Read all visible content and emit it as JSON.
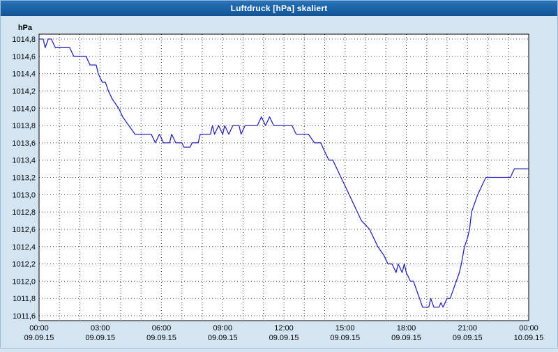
{
  "window": {
    "title": "Luftdruck [hPa] skaliert"
  },
  "colors": {
    "titlebar_bg": "#155a9e",
    "titlebar_text": "#ffffff",
    "frame_bg": "#d3e5f3",
    "plot_bg": "#ffffff",
    "plot_border": "#000000",
    "grid": "#3a3a3a",
    "line": "#2626bd"
  },
  "chart_data": {
    "type": "line",
    "title": "Luftdruck [hPa] skaliert",
    "xlabel": "",
    "ylabel": "hPa",
    "ylim": [
      1011.6,
      1014.8
    ],
    "y_tick_step": 0.2,
    "y_tick_labels": [
      "1014,8",
      "1014,6",
      "1014,4",
      "1014,2",
      "1014,0",
      "1013,8",
      "1013,6",
      "1013,4",
      "1013,2",
      "1013,0",
      "1012,8",
      "1012,6",
      "1012,4",
      "1012,2",
      "1012,0",
      "1011,8",
      "1011,6"
    ],
    "xlim": [
      0,
      24
    ],
    "x_minor_grid_step_hours": 1,
    "grid": "dotted",
    "legend": "none",
    "x_ticks": [
      {
        "hour": 0,
        "time": "00:00",
        "date": "09.09.15"
      },
      {
        "hour": 3,
        "time": "03:00",
        "date": "09.09.15"
      },
      {
        "hour": 6,
        "time": "06:00",
        "date": "09.09.15"
      },
      {
        "hour": 9,
        "time": "09:00",
        "date": "09.09.15"
      },
      {
        "hour": 12,
        "time": "12:00",
        "date": "09.09.15"
      },
      {
        "hour": 15,
        "time": "15:00",
        "date": "09.09.15"
      },
      {
        "hour": 18,
        "time": "18:00",
        "date": "09.09.15"
      },
      {
        "hour": 21,
        "time": "21:00",
        "date": "09.09.15"
      },
      {
        "hour": 24,
        "time": "00:00",
        "date": "10.09.15"
      }
    ],
    "series": [
      {
        "name": "Luftdruck",
        "unit": "hPa",
        "points": [
          [
            0,
            1014.8
          ],
          [
            0.2,
            1014.8
          ],
          [
            0.3,
            1014.7
          ],
          [
            0.45,
            1014.8
          ],
          [
            0.6,
            1014.8
          ],
          [
            0.8,
            1014.7
          ],
          [
            1.5,
            1014.7
          ],
          [
            1.7,
            1014.6
          ],
          [
            2.3,
            1014.6
          ],
          [
            2.5,
            1014.5
          ],
          [
            2.8,
            1014.5
          ],
          [
            2.9,
            1014.4
          ],
          [
            3.1,
            1014.3
          ],
          [
            3.25,
            1014.3
          ],
          [
            3.4,
            1014.2
          ],
          [
            3.6,
            1014.1
          ],
          [
            3.9,
            1014.0
          ],
          [
            4.1,
            1013.9
          ],
          [
            4.4,
            1013.8
          ],
          [
            4.7,
            1013.7
          ],
          [
            5.5,
            1013.7
          ],
          [
            5.7,
            1013.6
          ],
          [
            5.9,
            1013.7
          ],
          [
            6.1,
            1013.6
          ],
          [
            6.4,
            1013.6
          ],
          [
            6.5,
            1013.7
          ],
          [
            6.7,
            1013.6
          ],
          [
            7.0,
            1013.6
          ],
          [
            7.1,
            1013.55
          ],
          [
            7.4,
            1013.55
          ],
          [
            7.5,
            1013.6
          ],
          [
            7.8,
            1013.6
          ],
          [
            7.9,
            1013.7
          ],
          [
            8.4,
            1013.7
          ],
          [
            8.5,
            1013.8
          ],
          [
            8.6,
            1013.7
          ],
          [
            8.8,
            1013.8
          ],
          [
            9.0,
            1013.7
          ],
          [
            9.1,
            1013.8
          ],
          [
            9.3,
            1013.7
          ],
          [
            9.5,
            1013.8
          ],
          [
            9.8,
            1013.8
          ],
          [
            9.9,
            1013.7
          ],
          [
            10.1,
            1013.8
          ],
          [
            10.7,
            1013.8
          ],
          [
            10.9,
            1013.9
          ],
          [
            11.1,
            1013.8
          ],
          [
            11.3,
            1013.9
          ],
          [
            11.5,
            1013.8
          ],
          [
            12.4,
            1013.8
          ],
          [
            12.6,
            1013.7
          ],
          [
            13.2,
            1013.7
          ],
          [
            13.5,
            1013.6
          ],
          [
            13.8,
            1013.6
          ],
          [
            14.0,
            1013.5
          ],
          [
            14.2,
            1013.4
          ],
          [
            14.4,
            1013.4
          ],
          [
            14.6,
            1013.3
          ],
          [
            14.8,
            1013.2
          ],
          [
            15.0,
            1013.1
          ],
          [
            15.2,
            1013.0
          ],
          [
            15.4,
            1012.9
          ],
          [
            15.6,
            1012.8
          ],
          [
            15.8,
            1012.7
          ],
          [
            16.0,
            1012.65
          ],
          [
            16.2,
            1012.6
          ],
          [
            16.4,
            1012.5
          ],
          [
            16.6,
            1012.4
          ],
          [
            16.9,
            1012.3
          ],
          [
            17.1,
            1012.2
          ],
          [
            17.3,
            1012.2
          ],
          [
            17.5,
            1012.1
          ],
          [
            17.6,
            1012.2
          ],
          [
            17.8,
            1012.1
          ],
          [
            17.9,
            1012.2
          ],
          [
            18.0,
            1012.1
          ],
          [
            18.2,
            1012.0
          ],
          [
            18.35,
            1012.0
          ],
          [
            18.5,
            1011.9
          ],
          [
            18.65,
            1011.8
          ],
          [
            18.8,
            1011.7
          ],
          [
            19.1,
            1011.7
          ],
          [
            19.2,
            1011.8
          ],
          [
            19.35,
            1011.7
          ],
          [
            19.6,
            1011.7
          ],
          [
            19.7,
            1011.75
          ],
          [
            19.8,
            1011.7
          ],
          [
            20.0,
            1011.8
          ],
          [
            20.15,
            1011.8
          ],
          [
            20.3,
            1011.9
          ],
          [
            20.45,
            1012.0
          ],
          [
            20.6,
            1012.1
          ],
          [
            20.7,
            1012.2
          ],
          [
            20.85,
            1012.4
          ],
          [
            21.0,
            1012.5
          ],
          [
            21.1,
            1012.6
          ],
          [
            21.2,
            1012.8
          ],
          [
            21.35,
            1012.9
          ],
          [
            21.5,
            1013.0
          ],
          [
            21.7,
            1013.1
          ],
          [
            21.9,
            1013.2
          ],
          [
            23.1,
            1013.2
          ],
          [
            23.3,
            1013.3
          ],
          [
            24,
            1013.3
          ]
        ]
      }
    ]
  }
}
